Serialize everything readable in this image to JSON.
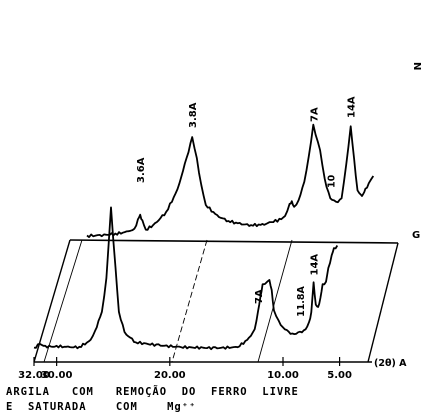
{
  "chart_data": {
    "type": "line",
    "title": "",
    "xlabel": "(2θ) A",
    "ylabel": "",
    "x_reversed": true,
    "xlim": [
      32.0,
      5.0
    ],
    "x_tick_labels": [
      "32.00",
      "30.00",
      "20.00",
      "10.00",
      "5.00"
    ],
    "x_ticks": [
      32.0,
      30.0,
      20.0,
      10.0,
      5.0
    ],
    "grid": false,
    "legend": "none",
    "series": [
      {
        "name": "N",
        "x": [
          30.5,
          29.0,
          28.0,
          27.0,
          26.3,
          26.0,
          25.8,
          25.6,
          25.3,
          24.5,
          23.5,
          22.5,
          21.7,
          21.2,
          20.8,
          20.4,
          20.0,
          19.0,
          18.0,
          17.0,
          16.0,
          15.0,
          14.2,
          13.5,
          13.0,
          12.6,
          12.4,
          12.2,
          11.8,
          11.3,
          10.9,
          10.5,
          9.9,
          9.5,
          9.0,
          8.5,
          8.0,
          7.6,
          7.2,
          6.9,
          6.6,
          6.3,
          6.1,
          5.9,
          5.6,
          5.2
        ],
        "y": [
          2,
          3,
          4,
          6,
          9,
          18,
          23,
          17,
          8,
          14,
          26,
          48,
          80,
          100,
          80,
          52,
          33,
          22,
          17,
          14,
          13,
          13,
          16,
          18,
          22,
          33,
          37,
          30,
          38,
          55,
          82,
          112,
          88,
          58,
          40,
          35,
          40,
          72,
          112,
          78,
          48,
          42,
          44,
          48,
          55,
          62
        ]
      },
      {
        "name": "G",
        "x": [
          32.0,
          31.5,
          31.0,
          30.5,
          30.0,
          29.0,
          28.0,
          27.0,
          26.6,
          26.3,
          26.0,
          25.6,
          25.2,
          24.8,
          24.5,
          24.0,
          23.0,
          21.0,
          19.0,
          16.0,
          14.0,
          13.0,
          12.5,
          12.2,
          12.0,
          11.8,
          11.2,
          11.0,
          10.8,
          10.4,
          10.0,
          9.5,
          9.0,
          8.5,
          8.0,
          7.7,
          7.5,
          7.3,
          7.1,
          6.9,
          6.7,
          6.5,
          6.2,
          6.0,
          5.7,
          5.5,
          5.2
        ],
        "y": [
          2,
          6,
          4,
          3,
          4,
          3,
          3,
          10,
          20,
          30,
          40,
          75,
          150,
          86,
          40,
          18,
          8,
          5,
          3,
          2,
          3,
          12,
          22,
          40,
          56,
          68,
          74,
          62,
          42,
          30,
          24,
          18,
          17,
          18,
          22,
          28,
          40,
          70,
          48,
          44,
          55,
          68,
          72,
          85,
          100,
          106,
          110
        ]
      }
    ],
    "annotations": [
      {
        "text": "3.8A",
        "series": "N"
      },
      {
        "text": "3.6A",
        "series": "N"
      },
      {
        "text": "7A",
        "series": "N"
      },
      {
        "text": "14A",
        "series": "N"
      },
      {
        "text": "10",
        "series": "N"
      },
      {
        "text": "7A",
        "series": "G"
      },
      {
        "text": "14A",
        "series": "G"
      },
      {
        "text": "11.8A",
        "series": "G"
      }
    ],
    "axis_label": "(2θ) A"
  },
  "caption": {
    "line1": "ARGILA   COM   REMOÇÃO  DO  FERRO  LIVRE",
    "line2": "E  SATURADA    COM    Mg⁺⁺"
  },
  "colors": {
    "ink": "#000000",
    "background": "#ffffff"
  }
}
